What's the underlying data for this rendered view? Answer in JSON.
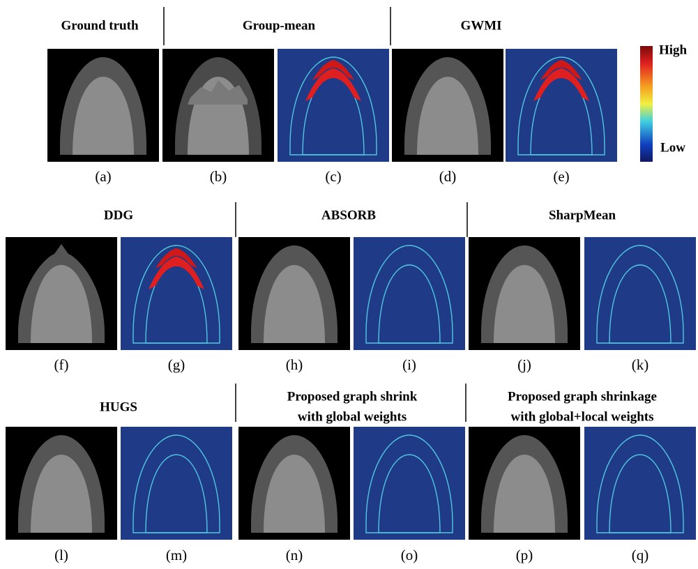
{
  "rows": [
    {
      "groups": [
        {
          "title": [
            "Ground truth"
          ]
        },
        {
          "title": [
            "Group-mean"
          ]
        },
        {
          "title": [
            "GWMI"
          ]
        }
      ],
      "captions": [
        "(a)",
        "(b)",
        "(c)",
        "(d)",
        "(e)"
      ]
    },
    {
      "groups": [
        {
          "title": [
            "DDG"
          ]
        },
        {
          "title": [
            "ABSORB"
          ]
        },
        {
          "title": [
            "SharpMean"
          ]
        }
      ],
      "captions": [
        "(f)",
        "(g)",
        "(h)",
        "(i)",
        "(j)",
        "(k)"
      ]
    },
    {
      "groups": [
        {
          "title": [
            "HUGS"
          ]
        },
        {
          "title": [
            "Proposed graph shrink",
            "with global weights"
          ]
        },
        {
          "title": [
            "Proposed graph shrinkage",
            "with global+local weights"
          ]
        }
      ],
      "captions": [
        "(l)",
        "(m)",
        "(n)",
        "(o)",
        "(p)",
        "(q)"
      ]
    }
  ],
  "colorbar": {
    "high": "High",
    "low": "Low"
  }
}
